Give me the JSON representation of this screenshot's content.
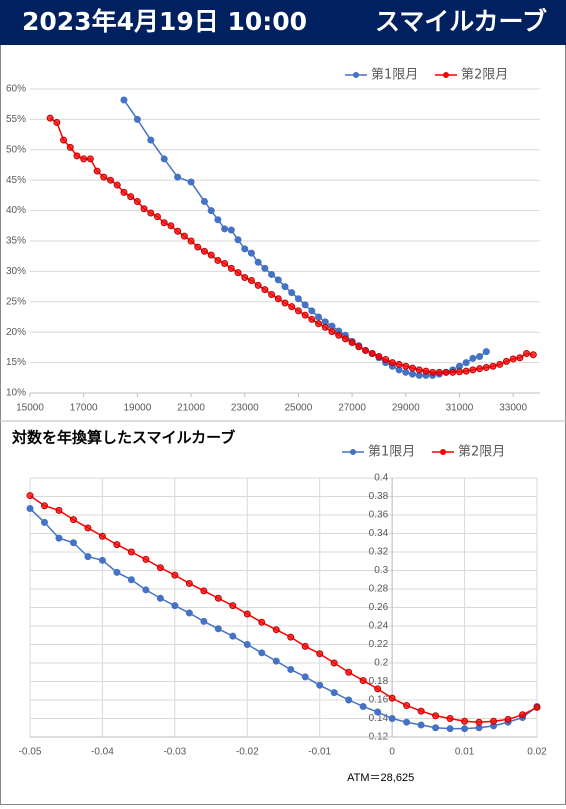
{
  "header": {
    "date": "2023年4月19日 10:00",
    "title": "スマイルカーブ"
  },
  "chart_data": [
    {
      "type": "line",
      "legend": "top-right",
      "grid": "y",
      "xlim": [
        15000,
        34000
      ],
      "xticks": [
        15000,
        17000,
        19000,
        21000,
        23000,
        25000,
        27000,
        29000,
        31000,
        33000
      ],
      "ylim": [
        10,
        60
      ],
      "yticks": [
        {
          "value": 10,
          "label": "10%"
        },
        {
          "value": 15,
          "label": "15%"
        },
        {
          "value": 20,
          "label": "20%"
        },
        {
          "value": 25,
          "label": "25%"
        },
        {
          "value": 30,
          "label": "30%"
        },
        {
          "value": 35,
          "label": "35%"
        },
        {
          "value": 40,
          "label": "40%"
        },
        {
          "value": 45,
          "label": "45%"
        },
        {
          "value": 50,
          "label": "50%"
        },
        {
          "value": 55,
          "label": "55%"
        },
        {
          "value": 60,
          "label": "60%"
        }
      ],
      "series": [
        {
          "name": "第1限月",
          "color": "#4472c4",
          "x": [
            18500,
            19000,
            19500,
            20000,
            20500,
            21000,
            21500,
            21750,
            22000,
            22250,
            22500,
            22750,
            23000,
            23250,
            23500,
            23750,
            24000,
            24250,
            24500,
            24750,
            25000,
            25250,
            25500,
            25750,
            26000,
            26250,
            26500,
            26750,
            27000,
            27250,
            27500,
            27750,
            28000,
            28250,
            28500,
            28750,
            29000,
            29250,
            29500,
            29750,
            30000,
            30250,
            30500,
            30750,
            31000,
            31250,
            31500,
            31750,
            32000
          ],
          "values": [
            58.2,
            55,
            51.6,
            48.5,
            45.5,
            44.7,
            41.5,
            40,
            38.5,
            37,
            36.8,
            35.2,
            33.7,
            33,
            31.5,
            30.5,
            29.5,
            28.6,
            27.5,
            26.5,
            25.5,
            24.5,
            23.5,
            22.5,
            21.7,
            21,
            20.2,
            19.5,
            18.5,
            17.8,
            17,
            16.5,
            15.8,
            15,
            14.4,
            13.8,
            13.4,
            13.1,
            12.9,
            12.9,
            12.9,
            13.1,
            13.4,
            13.8,
            14.4,
            15,
            15.7,
            16,
            16.8
          ]
        },
        {
          "name": "第2限月",
          "color": "#ff0000",
          "x": [
            15750,
            16000,
            16250,
            16500,
            16750,
            17000,
            17250,
            17500,
            17750,
            18000,
            18250,
            18500,
            18750,
            19000,
            19250,
            19500,
            19750,
            20000,
            20250,
            20500,
            20750,
            21000,
            21250,
            21500,
            21750,
            22000,
            22250,
            22500,
            22750,
            23000,
            23250,
            23500,
            23750,
            24000,
            24250,
            24500,
            24750,
            25000,
            25250,
            25500,
            25750,
            26000,
            26250,
            26500,
            26750,
            27000,
            27250,
            27500,
            27750,
            28000,
            28250,
            28500,
            28750,
            29000,
            29250,
            29500,
            29750,
            30000,
            30250,
            30500,
            30750,
            31000,
            31250,
            31500,
            31750,
            32000,
            32250,
            32500,
            32750,
            33000,
            33250,
            33500,
            33750
          ],
          "values": [
            55.2,
            54.5,
            51.6,
            50.4,
            49,
            48.5,
            48.5,
            46.5,
            45.5,
            45,
            44.2,
            43,
            42.3,
            41.5,
            40.3,
            39.6,
            39,
            38,
            37.5,
            36.6,
            35.8,
            35,
            34,
            33.3,
            32.7,
            31.8,
            31.3,
            30.5,
            29.8,
            29,
            28.5,
            27.7,
            27,
            26.2,
            25.5,
            24.8,
            24.2,
            23.5,
            22.8,
            22.1,
            21.4,
            20.8,
            20.1,
            19.5,
            18.9,
            18.3,
            17.6,
            17,
            16.5,
            16,
            15.5,
            15,
            14.7,
            14.4,
            14.1,
            13.8,
            13.6,
            13.4,
            13.4,
            13.4,
            13.4,
            13.5,
            13.6,
            13.8,
            14,
            14.2,
            14.4,
            14.7,
            15.2,
            15.6,
            15.8,
            16.5,
            16.3
          ]
        }
      ]
    },
    {
      "type": "line",
      "title": "対数を年換算したスマイルカーブ",
      "legend": "top-right",
      "grid": "both",
      "annotation": "ATM＝28,625",
      "xlim": [
        -0.05,
        0.02
      ],
      "xticks": [
        -0.05,
        -0.04,
        -0.03,
        -0.02,
        -0.01,
        0,
        0.01,
        0.02
      ],
      "ylim": [
        0.12,
        0.4
      ],
      "yticks": [
        0.12,
        0.14,
        0.16,
        0.18,
        0.2,
        0.22,
        0.24,
        0.26,
        0.28,
        0.3,
        0.32,
        0.34,
        0.36,
        0.38,
        0.4
      ],
      "x": [
        -0.05,
        -0.048,
        -0.046,
        -0.044,
        -0.042,
        -0.04,
        -0.038,
        -0.036,
        -0.034,
        -0.032,
        -0.03,
        -0.028,
        -0.026,
        -0.024,
        -0.022,
        -0.02,
        -0.018,
        -0.016,
        -0.014,
        -0.012,
        -0.01,
        -0.008,
        -0.006,
        -0.004,
        -0.002,
        0,
        0.002,
        0.004,
        0.006,
        0.008,
        0.01,
        0.012,
        0.014,
        0.016,
        0.018,
        0.02
      ],
      "series": [
        {
          "name": "第1限月",
          "color": "#4472c4",
          "values": [
            0.367,
            0.352,
            0.335,
            0.33,
            0.315,
            0.311,
            0.298,
            0.29,
            0.279,
            0.27,
            0.262,
            0.254,
            0.245,
            0.237,
            0.229,
            0.22,
            0.211,
            0.202,
            0.193,
            0.185,
            0.176,
            0.168,
            0.16,
            0.153,
            0.147,
            0.14,
            0.136,
            0.133,
            0.13,
            0.129,
            0.129,
            0.13,
            0.132,
            0.136,
            0.141,
            0.153
          ]
        },
        {
          "name": "第2限月",
          "color": "#ff0000",
          "values": [
            0.381,
            0.37,
            0.365,
            0.355,
            0.346,
            0.337,
            0.328,
            0.32,
            0.312,
            0.303,
            0.295,
            0.286,
            0.278,
            0.27,
            0.262,
            0.253,
            0.244,
            0.236,
            0.228,
            0.218,
            0.21,
            0.2,
            0.19,
            0.181,
            0.172,
            0.162,
            0.154,
            0.148,
            0.143,
            0.14,
            0.137,
            0.136,
            0.137,
            0.139,
            0.144,
            0.152
          ]
        }
      ]
    }
  ]
}
